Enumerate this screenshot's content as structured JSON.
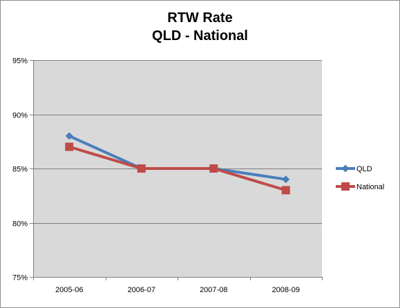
{
  "chart_data": {
    "type": "line",
    "title": [
      "RTW Rate",
      "QLD - National"
    ],
    "categories": [
      "2005-06",
      "2006-07",
      "2007-08",
      "2008-09"
    ],
    "series": [
      {
        "name": "QLD",
        "values": [
          88,
          85,
          85,
          84
        ],
        "color": "#4a7ebb",
        "marker": "diamond"
      },
      {
        "name": "National",
        "values": [
          87,
          85,
          85,
          83
        ],
        "color": "#be4b48",
        "marker": "square"
      }
    ],
    "ylim": [
      75,
      95
    ],
    "yticks": [
      75,
      80,
      85,
      90,
      95
    ],
    "ytick_format": "percent",
    "grid": true,
    "plot_background": "#d9d9d9",
    "legend": "right"
  }
}
